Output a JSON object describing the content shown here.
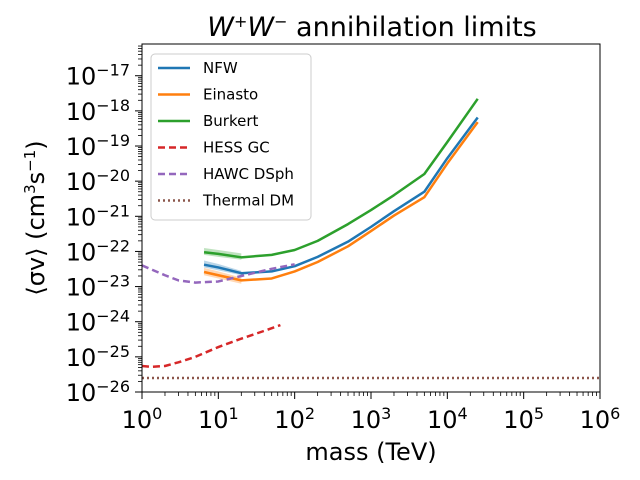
{
  "chart_data": {
    "type": "line",
    "title": {
      "main": "W",
      "sup1": "+",
      "mid": "W",
      "sup2": "−",
      "rest": " annihilation limits"
    },
    "xlabel": "mass (TeV)",
    "ylabel": {
      "pre": "⟨σv⟩ (cm",
      "sup1": "3",
      "mid": "s",
      "sup2": "−1",
      "post": ")"
    },
    "x_scale": "log",
    "y_scale": "log",
    "xlim": [
      1,
      1000000
    ],
    "ylim": [
      1e-26,
      8e-17
    ],
    "x_ticks": [
      {
        "value": 1,
        "base": "10",
        "exp": "0"
      },
      {
        "value": 10,
        "base": "10",
        "exp": "1"
      },
      {
        "value": 100,
        "base": "10",
        "exp": "2"
      },
      {
        "value": 1000,
        "base": "10",
        "exp": "3"
      },
      {
        "value": 10000,
        "base": "10",
        "exp": "4"
      },
      {
        "value": 100000,
        "base": "10",
        "exp": "5"
      },
      {
        "value": 1000000,
        "base": "10",
        "exp": "6"
      }
    ],
    "y_ticks": [
      {
        "value": 1e-26,
        "base": "10",
        "exp": "−26"
      },
      {
        "value": 1e-25,
        "base": "10",
        "exp": "−25"
      },
      {
        "value": 1e-24,
        "base": "10",
        "exp": "−24"
      },
      {
        "value": 1e-23,
        "base": "10",
        "exp": "−23"
      },
      {
        "value": 1e-22,
        "base": "10",
        "exp": "−22"
      },
      {
        "value": 1e-21,
        "base": "10",
        "exp": "−21"
      },
      {
        "value": 1e-20,
        "base": "10",
        "exp": "−20"
      },
      {
        "value": 1e-19,
        "base": "10",
        "exp": "−19"
      },
      {
        "value": 1e-18,
        "base": "10",
        "exp": "−18"
      },
      {
        "value": 1e-17,
        "base": "10",
        "exp": "−17"
      }
    ],
    "grid": false,
    "legend_position": "top-left",
    "series": [
      {
        "name": "NFW",
        "color": "#1f77b4",
        "style": "solid",
        "x": [
          6.5,
          10,
          20,
          50,
          100,
          200,
          500,
          1000,
          2000,
          5000,
          10000,
          25000
        ],
        "y": [
          4.2e-23,
          3.5e-23,
          2.4e-23,
          2.7e-23,
          3.8e-23,
          7e-23,
          1.9e-22,
          5e-22,
          1.4e-21,
          5e-21,
          4.5e-20,
          6.5e-19
        ],
        "band": {
          "low": [
            3.5e-23,
            2.9e-23,
            2.1e-23
          ],
          "high": [
            5.5e-23,
            4.4e-23,
            2.8e-23
          ]
        }
      },
      {
        "name": "Einasto",
        "color": "#ff7f0e",
        "style": "solid",
        "x": [
          6.5,
          10,
          20,
          50,
          100,
          200,
          500,
          1000,
          2000,
          5000,
          10000,
          25000
        ],
        "y": [
          2.6e-23,
          2.1e-23,
          1.5e-23,
          1.7e-23,
          2.7e-23,
          5e-23,
          1.4e-22,
          3.8e-22,
          1.05e-21,
          3.5e-21,
          3.2e-20,
          4.8e-19
        ],
        "band": {
          "low": [
            2.1e-23,
            1.7e-23,
            1.2e-23
          ],
          "high": [
            3.4e-23,
            2.7e-23,
            1.8e-23
          ]
        }
      },
      {
        "name": "Burkert",
        "color": "#2ca02c",
        "style": "solid",
        "x": [
          6.5,
          10,
          20,
          50,
          100,
          200,
          500,
          1000,
          2000,
          5000,
          10000,
          25000
        ],
        "y": [
          9.5e-23,
          8.5e-23,
          6.8e-23,
          8e-23,
          1.1e-22,
          2e-22,
          6e-22,
          1.5e-21,
          4e-21,
          1.6e-20,
          1.3e-19,
          2.2e-18
        ],
        "band": {
          "low": [
            8e-23,
            7e-23,
            5.8e-23
          ],
          "high": [
            1.25e-22,
            1.1e-22,
            8.8e-23
          ]
        }
      },
      {
        "name": "HESS GC",
        "color": "#d62728",
        "style": "dashed",
        "x": [
          1,
          1.3,
          2,
          3,
          5,
          10,
          20,
          40,
          65
        ],
        "y": [
          5.5e-26,
          5.2e-26,
          5.5e-26,
          7e-26,
          1e-25,
          1.9e-25,
          3.3e-25,
          5.5e-25,
          8e-25
        ]
      },
      {
        "name": "HAWC DSph",
        "color": "#9467bd",
        "style": "dashed",
        "x": [
          1,
          2,
          3,
          5,
          10,
          20,
          50,
          100
        ],
        "y": [
          4e-23,
          2.1e-23,
          1.5e-23,
          1.3e-23,
          1.4e-23,
          2e-23,
          3.2e-23,
          4.3e-23
        ]
      },
      {
        "name": "Thermal DM",
        "color": "#8c564b",
        "style": "dotted",
        "x": [
          1,
          1000000
        ],
        "y": [
          2.5e-26,
          2.5e-26
        ]
      }
    ]
  }
}
